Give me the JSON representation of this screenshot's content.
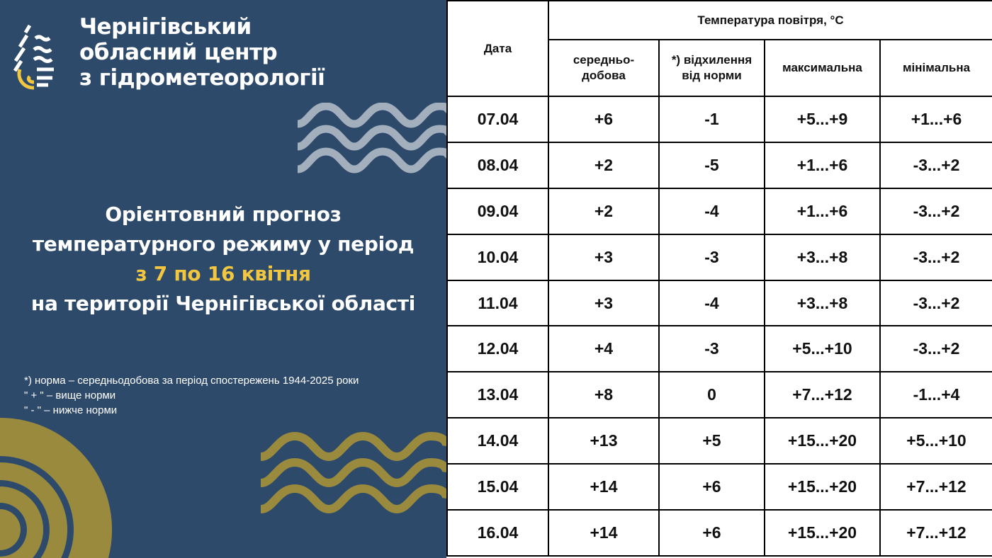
{
  "org": {
    "line1": "Чернігівський",
    "line2": "обласний центр",
    "line3": "з гідрометеорології"
  },
  "title": {
    "line1": "Орієнтовний прогноз",
    "line2": "температурного режиму у період",
    "line3": "з 7 по 16 квітня",
    "line4": "на території Чернігівської області"
  },
  "notes": [
    "*) норма – середньодобова за період спостережень 1944-2025 роки",
    "\" + \" – вище норми",
    "\" - \" – нижче норми"
  ],
  "colors": {
    "background": "#2e4a6b",
    "accent": "#f3c640",
    "gold": "#9a8a3e",
    "wave_gray": "#a3afbd"
  },
  "table": {
    "header": {
      "date": "Дата",
      "group": "Температура повітря, °С",
      "avg": "середньо-добова",
      "dev": "*) відхилення від норми",
      "max": "максимальна",
      "min": "мінімальна"
    },
    "rows": [
      [
        "07.04",
        "+6",
        "-1",
        "+5...+9",
        "+1...+6"
      ],
      [
        "08.04",
        "+2",
        "-5",
        "+1...+6",
        "-3...+2"
      ],
      [
        "09.04",
        "+2",
        "-4",
        "+1...+6",
        "-3...+2"
      ],
      [
        "10.04",
        "+3",
        "-3",
        "+3...+8",
        "-3...+2"
      ],
      [
        "11.04",
        "+3",
        "-4",
        "+3...+8",
        "-3...+2"
      ],
      [
        "12.04",
        "+4",
        "-3",
        "+5...+10",
        "-3...+2"
      ],
      [
        "13.04",
        "+8",
        "0",
        "+7...+12",
        "-1...+4"
      ],
      [
        "14.04",
        "+13",
        "+5",
        "+15...+20",
        "+5...+10"
      ],
      [
        "15.04",
        "+14",
        "+6",
        "+15...+20",
        "+7...+12"
      ],
      [
        "16.04",
        "+14",
        "+6",
        "+15...+20",
        "+7...+12"
      ]
    ]
  }
}
